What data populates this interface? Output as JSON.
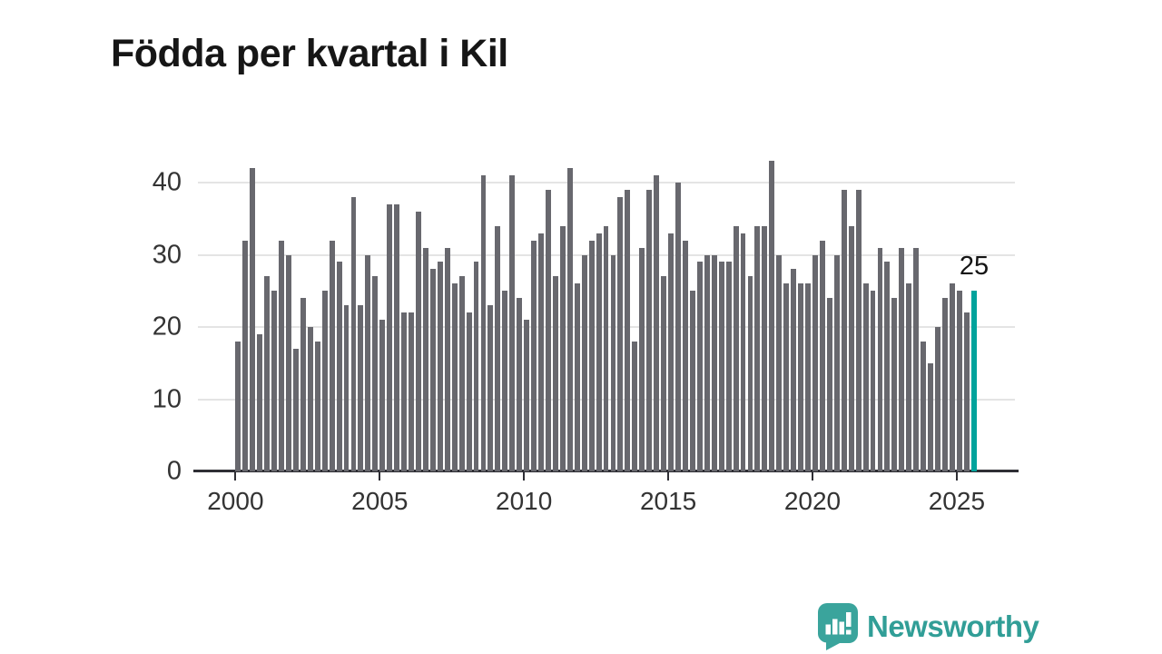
{
  "header": {
    "title": "Födda per kvartal i Kil"
  },
  "annotation": {
    "value": "25"
  },
  "logo": {
    "text": "Newsworthy"
  },
  "colors": {
    "bar": "#68686e",
    "highlight": "#00a39c",
    "axis": "#2f2f35",
    "grid": "#e4e4e4",
    "text": "#333333",
    "logo_teal": "#319e97"
  },
  "chart_data": {
    "type": "bar",
    "title": "Födda per kvartal i Kil",
    "xlabel": "",
    "ylabel": "",
    "x_range": "2000 Q1 – 2025 Q3",
    "ylim": [
      0,
      45
    ],
    "grid": true,
    "y_ticks": [
      0,
      10,
      20,
      30,
      40
    ],
    "x_ticks": [
      2000,
      2005,
      2010,
      2015,
      2020,
      2025
    ],
    "highlight_last_bar": true,
    "last_bar_label": "25",
    "series": [
      {
        "name": "Födda per kvartal",
        "start_year": 2000,
        "start_quarter": 1,
        "values": [
          18,
          32,
          42,
          19,
          27,
          25,
          32,
          30,
          17,
          24,
          20,
          18,
          25,
          32,
          29,
          23,
          38,
          23,
          30,
          27,
          21,
          37,
          37,
          22,
          22,
          36,
          31,
          28,
          29,
          31,
          26,
          27,
          22,
          29,
          41,
          23,
          34,
          25,
          41,
          24,
          21,
          32,
          33,
          39,
          27,
          34,
          42,
          26,
          30,
          32,
          33,
          34,
          30,
          38,
          39,
          18,
          31,
          39,
          41,
          27,
          33,
          40,
          32,
          25,
          29,
          30,
          30,
          29,
          29,
          34,
          33,
          27,
          34,
          34,
          43,
          30,
          26,
          28,
          26,
          26,
          30,
          32,
          24,
          30,
          39,
          34,
          39,
          26,
          25,
          31,
          29,
          24,
          31,
          26,
          31,
          18,
          15,
          20,
          24,
          26,
          25,
          22,
          25
        ]
      }
    ]
  }
}
